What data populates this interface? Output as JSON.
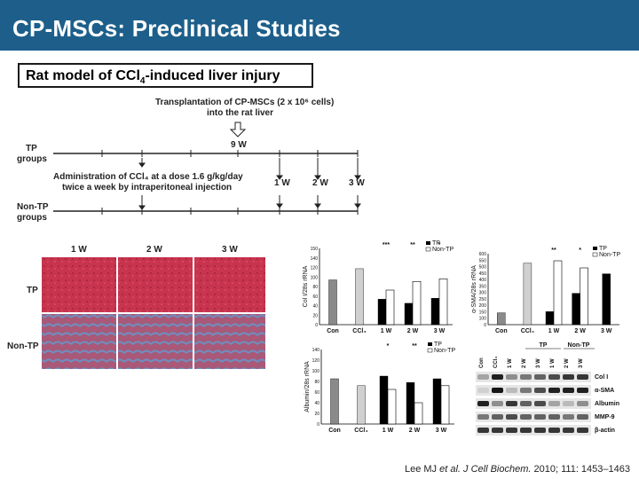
{
  "header": {
    "title": "CP-MSCs: Preclinical Studies",
    "subtitle_main": "Rat model of CCl",
    "subtitle_sub": "4",
    "subtitle_rest": "-induced liver injury"
  },
  "schematic": {
    "transplant_line1": "Transplantation of CP-MSCs (2 x 10⁶ cells)",
    "transplant_line2": "into the rat liver",
    "week_9": "9 W",
    "tp_line1": "TP",
    "tp_line2": "groups",
    "admin_line1": "Administration of CCl₄ at a dose 1.6 g/kg/day",
    "admin_line2": "twice a week by intraperitoneal injection",
    "week_1": "1 W",
    "week_2": "2 W",
    "week_3": "3 W",
    "nontp_line1": "Non-TP",
    "nontp_line2": "groups"
  },
  "histology": {
    "col_labels": [
      "1 W",
      "2 W",
      "3 W"
    ],
    "row_tp": "TP",
    "row_nontp": "Non-TP"
  },
  "colors": {
    "header_bg": "#1d5f8a",
    "tp_tissue": "#c8344e",
    "nontp_tissue": "#8a6a9a",
    "bar_black": "#000000",
    "bar_gray": "#8a8a8a"
  },
  "chart_data": [
    {
      "type": "bar",
      "ylabel": "Col I/28s rRNA",
      "ylim": [
        0,
        150
      ],
      "yticks": [
        "0",
        "20",
        "40",
        "60",
        "80",
        "100",
        "120",
        "140",
        "150"
      ],
      "categories": [
        "Con",
        "CCl₄",
        "1 W",
        "2 W",
        "3 W"
      ],
      "legend": [
        "TP",
        "Non-TP"
      ],
      "series": [
        {
          "name": "TP",
          "values": [
            88,
            110,
            50,
            42,
            52
          ]
        },
        {
          "name": "Non-TP",
          "values": [
            null,
            null,
            68,
            85,
            90
          ]
        }
      ],
      "significance": [
        "***",
        "**",
        "*"
      ]
    },
    {
      "type": "bar",
      "ylabel": "α-SMA/28s rRNA",
      "ylim": [
        0,
        600
      ],
      "yticks": [
        "0",
        "100",
        "150",
        "200",
        "250",
        "300",
        "350",
        "400",
        "450",
        "500",
        "550",
        "600"
      ],
      "categories": [
        "Con",
        "CCl₄",
        "1 W",
        "2 W",
        "3 W"
      ],
      "legend": [
        "TP",
        "Non-TP"
      ],
      "series": [
        {
          "name": "TP",
          "values": [
            100,
            520,
            110,
            265,
            430
          ]
        },
        {
          "name": "Non-TP",
          "values": [
            null,
            null,
            540,
            480,
            null
          ]
        }
      ],
      "significance": [
        "**",
        "*"
      ]
    },
    {
      "type": "bar",
      "ylabel": "Albumin/28s rRNA",
      "ylim": [
        0,
        140
      ],
      "yticks": [
        "0",
        "20",
        "40",
        "60",
        "80",
        "100",
        "120",
        "140"
      ],
      "categories": [
        "Con",
        "CCl₄",
        "1 W",
        "2 W",
        "3 W"
      ],
      "legend": [
        "TP",
        "Non-TP"
      ],
      "series": [
        {
          "name": "TP",
          "values": [
            85,
            72,
            90,
            78,
            85
          ]
        },
        {
          "name": "Non-TP",
          "values": [
            null,
            null,
            65,
            40,
            72
          ]
        }
      ],
      "significance": [
        "*",
        "**"
      ]
    }
  ],
  "blot": {
    "top_groups": [
      "TP",
      "Non-TP"
    ],
    "lane_labels": [
      "Con",
      "CCl₄",
      "1 W",
      "2 W",
      "3 W",
      "1 W",
      "2 W",
      "3 W"
    ],
    "proteins": [
      "Col I",
      "α-SMA",
      "Albumin",
      "MMP-9",
      "β-actin"
    ]
  },
  "citation": {
    "authors": "Lee MJ",
    "etal": "et al.",
    "journal": "J Cell Biochem.",
    "rest": "2010; 111: 1453–1463"
  }
}
